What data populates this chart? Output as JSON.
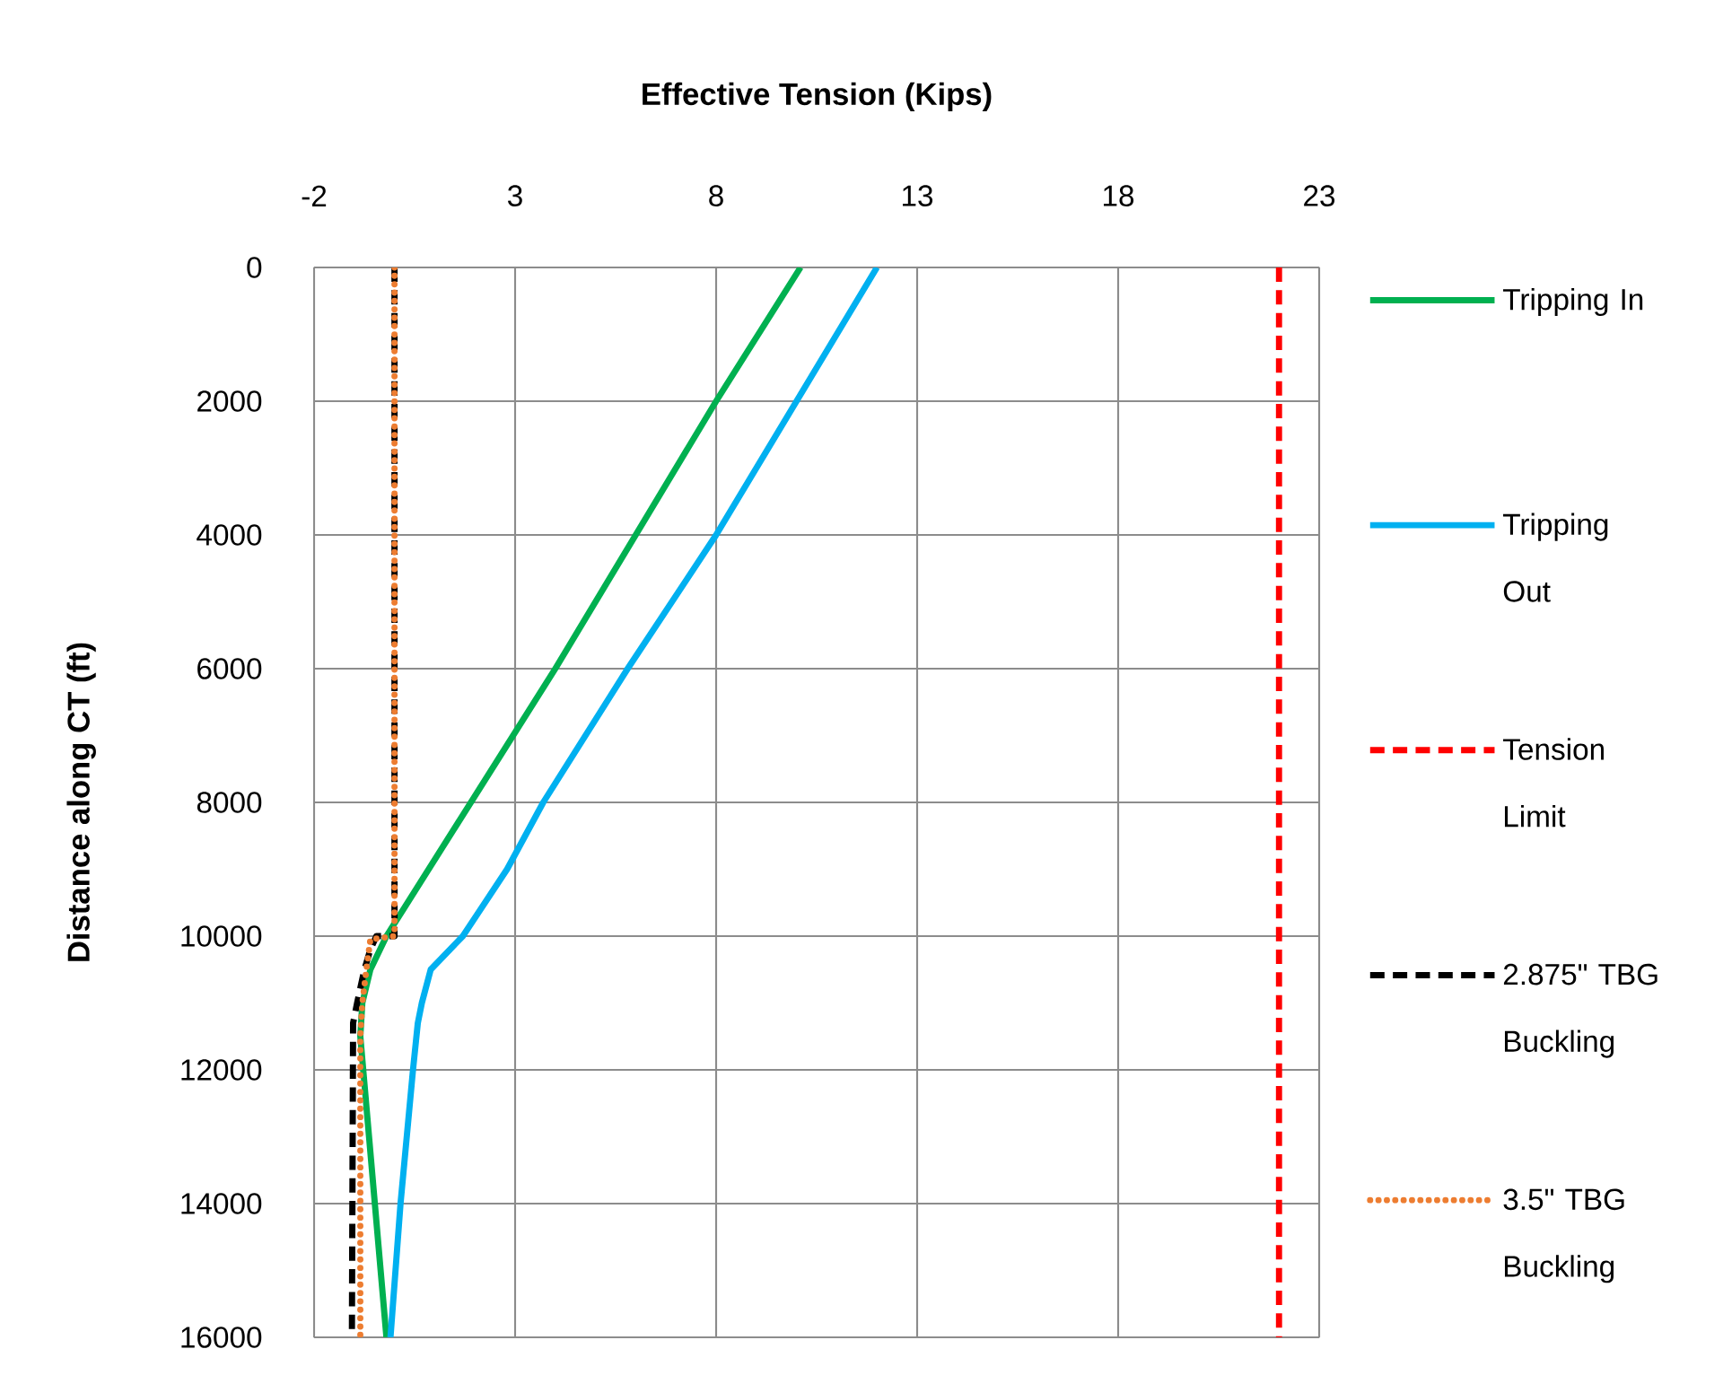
{
  "chart_data": {
    "type": "line",
    "xlabel": "Effective Tension (Kips)",
    "ylabel": "Distance along CT (ft)",
    "xlim": [
      -2,
      23
    ],
    "xticks": [
      -2,
      3,
      8,
      13,
      18,
      23
    ],
    "ylim": [
      16000,
      0
    ],
    "yticks": [
      0,
      2000,
      4000,
      6000,
      8000,
      10000,
      12000,
      14000,
      16000
    ],
    "grid": true,
    "legend": "right",
    "series": [
      {
        "name": "Tripping In",
        "color": "#00b050",
        "line_style": "solid",
        "x": [
          10.1,
          8.0,
          6.0,
          4.0,
          1.9,
          -0.2,
          -0.6,
          -0.8,
          -0.85,
          -0.2
        ],
        "values": [
          0,
          2000,
          4000,
          6000,
          8000,
          10000,
          10500,
          11000,
          11500,
          16000
        ]
      },
      {
        "name": "Tripping Out",
        "color": "#00b0f0",
        "line_style": "solid",
        "x": [
          12.0,
          10.0,
          8.0,
          5.8,
          3.7,
          2.8,
          1.7,
          0.9,
          0.68,
          0.58,
          0.46,
          0.15,
          -0.1
        ],
        "values": [
          0,
          2000,
          4000,
          6000,
          8000,
          9000,
          10000,
          10500,
          11000,
          11300,
          12000,
          14000,
          16000
        ]
      },
      {
        "name": "Tension Limit",
        "color": "#ff0000",
        "line_style": "dashed",
        "x": [
          22,
          22
        ],
        "values": [
          0,
          16000
        ]
      },
      {
        "name": "2.875\" TBG Buckling",
        "color": "#000000",
        "line_style": "dashed",
        "x": [
          0,
          0,
          -0.45,
          -0.6,
          -0.75,
          -0.93,
          -1.03,
          -1.06
        ],
        "values": [
          0,
          10000,
          10000,
          10200,
          10500,
          11000,
          11300,
          16000
        ]
      },
      {
        "name": "3.5\" TBG Buckling",
        "color": "#ed7d31",
        "line_style": "dotted",
        "x": [
          0,
          0,
          -0.6,
          -0.7,
          -0.8,
          -0.85,
          -0.85
        ],
        "values": [
          0,
          10000,
          10050,
          10500,
          11000,
          11500,
          16000
        ]
      }
    ]
  }
}
